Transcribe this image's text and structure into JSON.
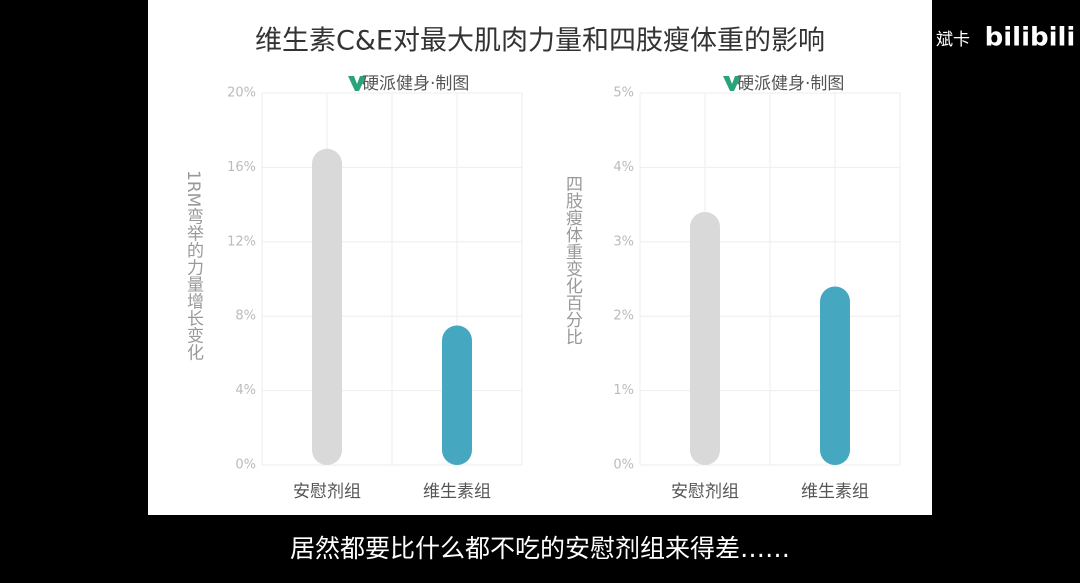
{
  "title": "维生素C&E对最大肌肉力量和四肢瘦体重的影响",
  "caption": "居然都要比什么都不吃的安慰剂组来得差……",
  "watermark": {
    "author": "斌卡",
    "site": "bilibili"
  },
  "chart_data": [
    {
      "type": "bar",
      "source": "硬派健身·制图",
      "y_label": "1RM弯举的力量增长变化",
      "categories": [
        "安慰剂组",
        "维生素组"
      ],
      "values": [
        17,
        7.5
      ],
      "colors": [
        "#d9d9d9",
        "#45a8c0"
      ],
      "ylim": [
        0,
        20
      ],
      "yticks": [
        {
          "value": 0,
          "label": "0%"
        },
        {
          "value": 4,
          "label": "4%"
        },
        {
          "value": 8,
          "label": "8%"
        },
        {
          "value": 12,
          "label": "12%"
        },
        {
          "value": 16,
          "label": "16%"
        },
        {
          "value": 20,
          "label": "20%"
        }
      ],
      "grid": true
    },
    {
      "type": "bar",
      "source": "硬派健身·制图",
      "y_label": "四肢瘦体重变化百分比",
      "categories": [
        "安慰剂组",
        "维生素组"
      ],
      "values": [
        3.4,
        2.4
      ],
      "colors": [
        "#d9d9d9",
        "#45a8c0"
      ],
      "ylim": [
        0,
        5
      ],
      "yticks": [
        {
          "value": 0,
          "label": "0%"
        },
        {
          "value": 1,
          "label": "1%"
        },
        {
          "value": 2,
          "label": "2%"
        },
        {
          "value": 3,
          "label": "3%"
        },
        {
          "value": 4,
          "label": "4%"
        },
        {
          "value": 5,
          "label": "5%"
        }
      ],
      "grid": true
    }
  ]
}
